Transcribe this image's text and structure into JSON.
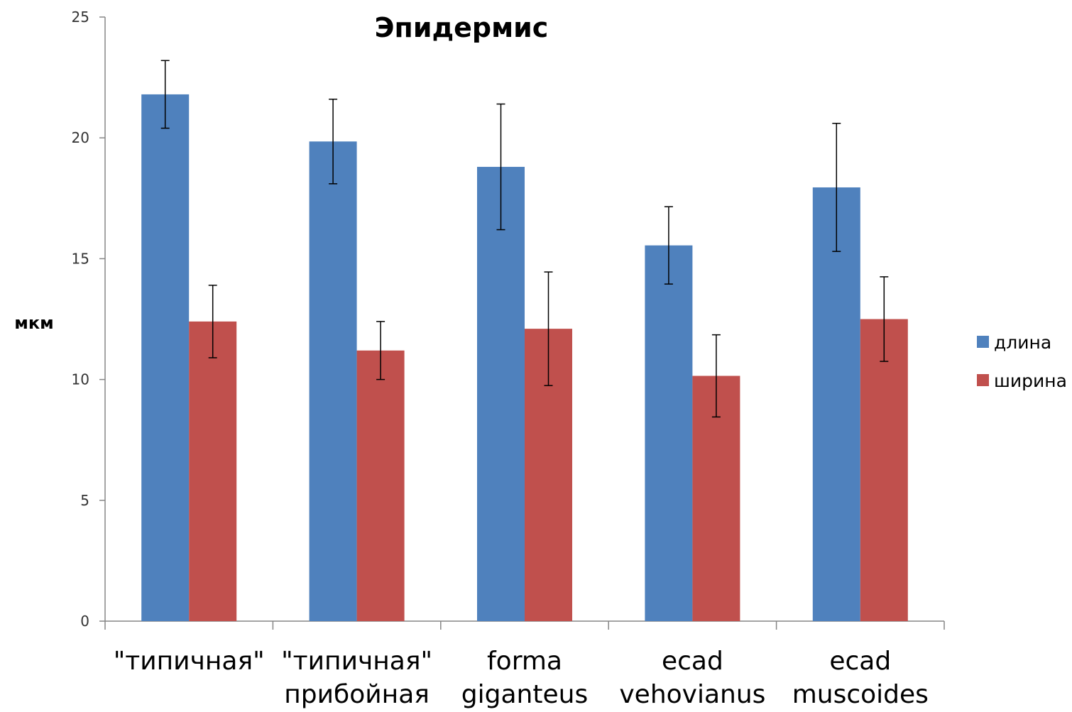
{
  "chart_data": {
    "type": "bar",
    "title": "Эпидермис",
    "xlabel": "",
    "ylabel": "мкм",
    "ylim": [
      0,
      25
    ],
    "yticks": [
      "0",
      "5",
      "10",
      "15",
      "20",
      "25"
    ],
    "categories": [
      [
        "\"типичная\""
      ],
      [
        "\"типичная\"",
        "прибойная"
      ],
      [
        "forma",
        "giganteus"
      ],
      [
        "ecad",
        "vehovianus"
      ],
      [
        "ecad",
        "muscoides"
      ]
    ],
    "series": [
      {
        "name": "длина",
        "color": "#4F81BD",
        "values": [
          21.8,
          19.85,
          18.8,
          15.55,
          17.95
        ],
        "error": [
          1.4,
          1.75,
          2.6,
          1.6,
          2.65
        ]
      },
      {
        "name": "ширина",
        "color": "#C0504D",
        "values": [
          12.4,
          11.2,
          12.1,
          10.15,
          12.5
        ],
        "error": [
          1.5,
          1.2,
          2.35,
          1.7,
          1.75
        ]
      }
    ],
    "legend_position": "right",
    "grid": false,
    "error_bars": true
  }
}
